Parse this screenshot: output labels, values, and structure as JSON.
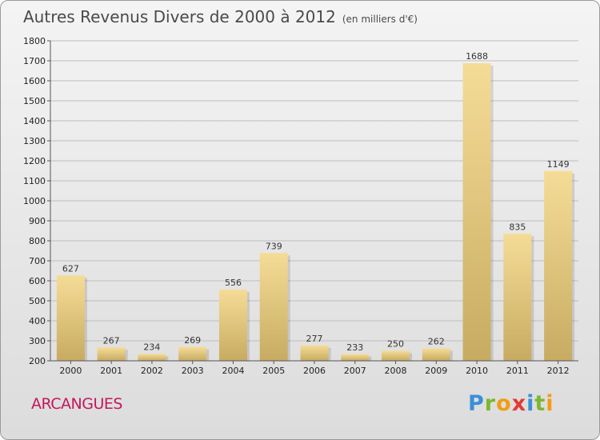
{
  "title": "Autres Revenus Divers de 2000 à 2012",
  "subtitle": "(en milliers d'€)",
  "commune": "ARCANGUES",
  "logo": {
    "letters": [
      {
        "ch": "P",
        "color": "#3b8fd9"
      },
      {
        "ch": "r",
        "color": "#7cb82f"
      },
      {
        "ch": "o",
        "color": "#f39c12"
      },
      {
        "ch": "x",
        "color": "#e53935"
      },
      {
        "ch": "i",
        "color": "#3b8fd9"
      },
      {
        "ch": "t",
        "color": "#7cb82f"
      },
      {
        "ch": "i",
        "color": "#f39c12"
      }
    ]
  },
  "colors": {
    "bar_light": "#f5dc96",
    "bar_dark": "#c8ab62"
  },
  "chart_data": {
    "type": "bar",
    "title": "Autres Revenus Divers de 2000 à 2012",
    "subtitle": "(en milliers d'€)",
    "categories": [
      "2000",
      "2001",
      "2002",
      "2003",
      "2004",
      "2005",
      "2006",
      "2007",
      "2008",
      "2009",
      "2010",
      "2011",
      "2012"
    ],
    "values": [
      627,
      267,
      234,
      269,
      556,
      739,
      277,
      233,
      250,
      262,
      1688,
      835,
      1149
    ],
    "ylim": [
      200,
      1800
    ],
    "yticks": [
      200,
      300,
      400,
      500,
      600,
      700,
      800,
      900,
      1000,
      1100,
      1200,
      1300,
      1400,
      1500,
      1600,
      1700,
      1800
    ],
    "grid": true,
    "xlabel": "",
    "ylabel": ""
  }
}
